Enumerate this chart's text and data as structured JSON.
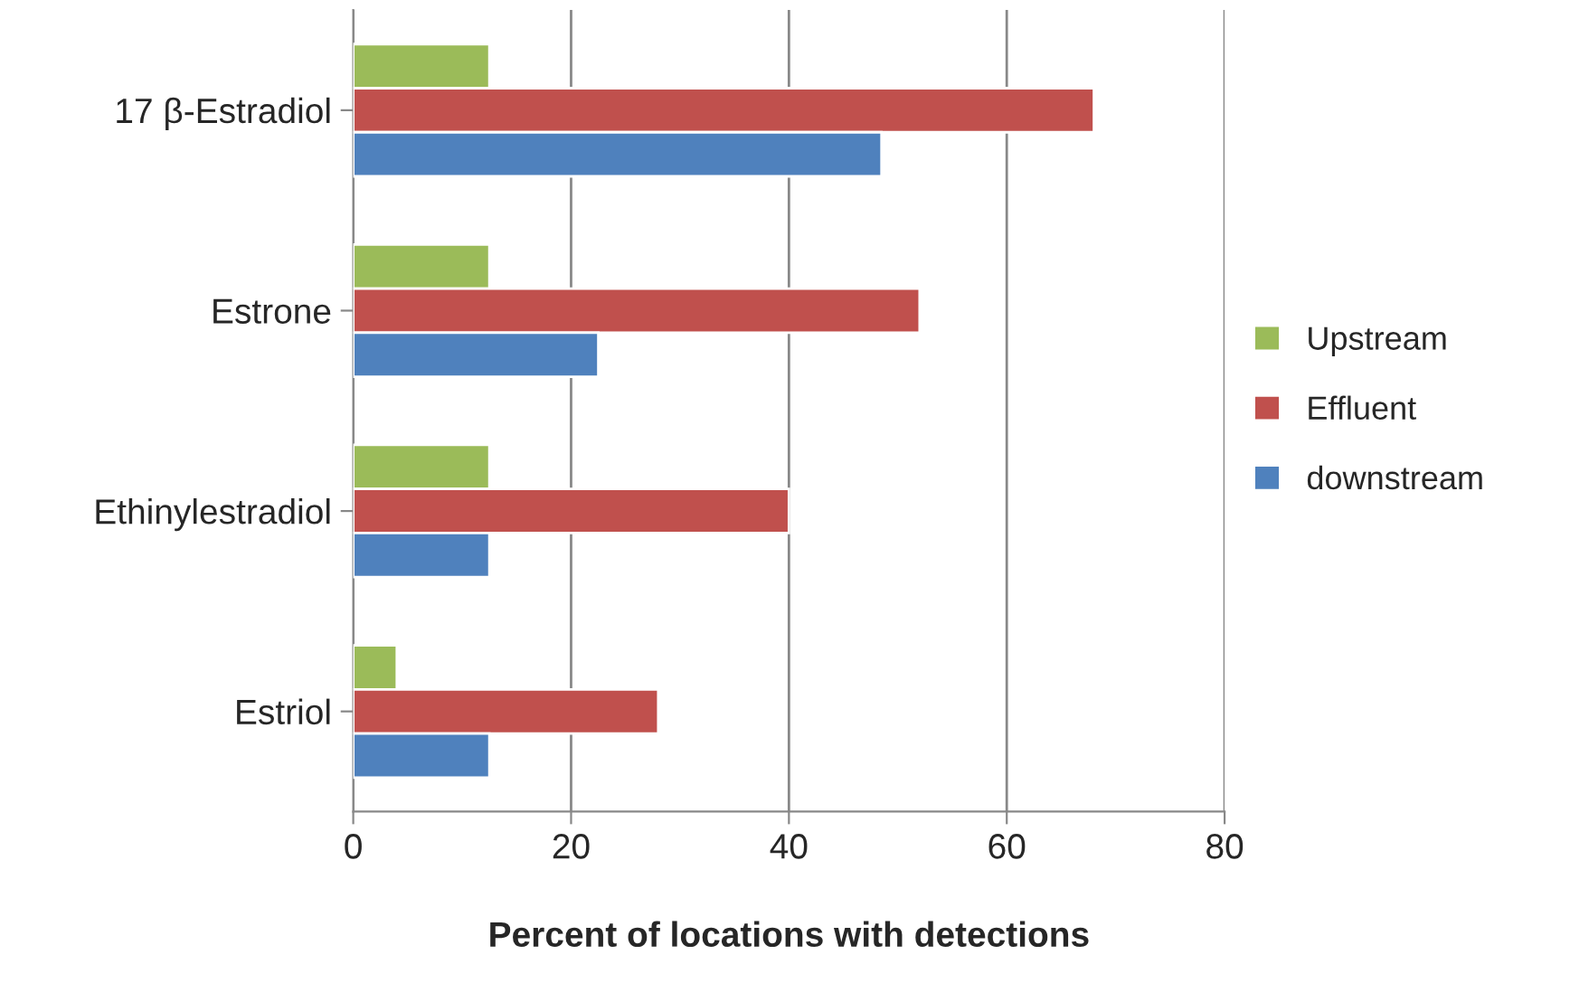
{
  "chart_data": {
    "type": "bar",
    "orientation": "horizontal",
    "xlabel": "Percent of locations with detections",
    "categories": [
      "17 β-Estradiol",
      "Estrone",
      "Ethinylestradiol",
      "Estriol"
    ],
    "series": [
      {
        "name": "Upstream",
        "color": "#9bbb59",
        "values": [
          12.5,
          12.5,
          12.5,
          4
        ]
      },
      {
        "name": "Effluent",
        "color": "#c0504d",
        "values": [
          68,
          52,
          40,
          28
        ]
      },
      {
        "name": "downstream",
        "color": "#4f81bd",
        "values": [
          48.5,
          22.5,
          12.5,
          12.5
        ]
      }
    ],
    "xlim": [
      0,
      80
    ],
    "xticks": [
      0,
      20,
      40,
      60,
      80
    ],
    "grid": "x",
    "legend": "right"
  }
}
